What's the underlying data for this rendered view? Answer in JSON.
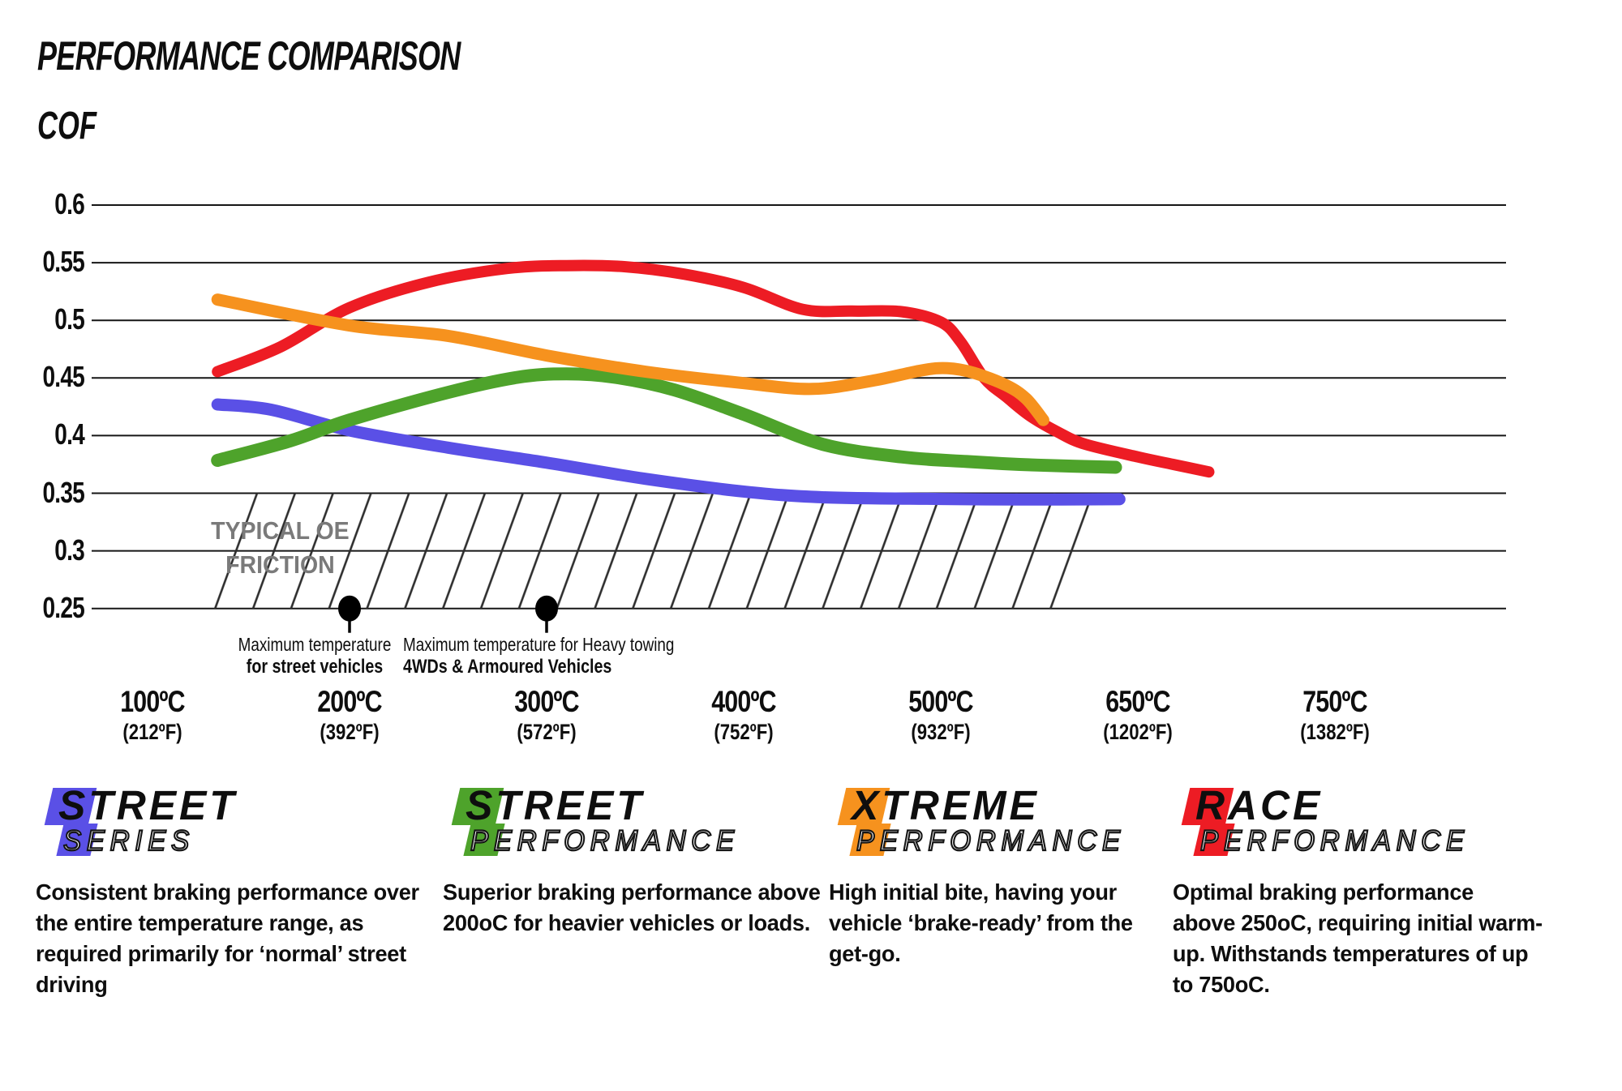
{
  "title": "PERFORMANCE COMPARISON",
  "y_axis_label": "COF",
  "chart_data": {
    "type": "line",
    "title": "PERFORMANCE COMPARISON",
    "ylabel": "COF",
    "grid": "horizontal-only",
    "ylim": [
      0.25,
      0.6
    ],
    "y_ticks": [
      0.6,
      0.55,
      0.5,
      0.45,
      0.4,
      0.35,
      0.3,
      0.25
    ],
    "x_ticks": [
      {
        "temp": 100,
        "label_c": "100ºC",
        "label_f": "(212ºF)"
      },
      {
        "temp": 200,
        "label_c": "200ºC",
        "label_f": "(392ºF)"
      },
      {
        "temp": 300,
        "label_c": "300ºC",
        "label_f": "(572ºF)"
      },
      {
        "temp": 400,
        "label_c": "400ºC",
        "label_f": "(752ºF)"
      },
      {
        "temp": 500,
        "label_c": "500ºC",
        "label_f": "(932ºF)"
      },
      {
        "temp": 650,
        "label_c": "650ºC",
        "label_f": "(1202ºF)"
      },
      {
        "temp": 750,
        "label_c": "750ºC",
        "label_f": "(1382ºF)"
      }
    ],
    "series": [
      {
        "name": "Street Series",
        "color": "#5a50e6",
        "stroke_width": 15,
        "points": [
          [
            133,
            0.427
          ],
          [
            160,
            0.4225
          ],
          [
            200,
            0.4045
          ],
          [
            250,
            0.3895
          ],
          [
            300,
            0.3765
          ],
          [
            350,
            0.3625
          ],
          [
            400,
            0.3515
          ],
          [
            440,
            0.3465
          ],
          [
            500,
            0.345
          ],
          [
            560,
            0.3445
          ],
          [
            636,
            0.3448
          ]
        ]
      },
      {
        "name": "Street Performance",
        "color": "#4ea32b",
        "stroke_width": 16,
        "points": [
          [
            133,
            0.3785
          ],
          [
            170,
            0.3955
          ],
          [
            200,
            0.4135
          ],
          [
            250,
            0.4375
          ],
          [
            285,
            0.4505
          ],
          [
            310,
            0.4535
          ],
          [
            335,
            0.4505
          ],
          [
            365,
            0.4395
          ],
          [
            400,
            0.4185
          ],
          [
            440,
            0.3925
          ],
          [
            480,
            0.3815
          ],
          [
            520,
            0.3775
          ],
          [
            560,
            0.375
          ],
          [
            600,
            0.3735
          ],
          [
            633,
            0.3725
          ]
        ]
      },
      {
        "name": "Xtreme Performance",
        "color": "#f6921e",
        "stroke_width": 15,
        "points": [
          [
            133,
            0.518
          ],
          [
            200,
            0.4955
          ],
          [
            250,
            0.4865
          ],
          [
            300,
            0.4695
          ],
          [
            350,
            0.4555
          ],
          [
            400,
            0.4455
          ],
          [
            435,
            0.4405
          ],
          [
            465,
            0.4475
          ],
          [
            490,
            0.4565
          ],
          [
            505,
            0.4585
          ],
          [
            525,
            0.4545
          ],
          [
            550,
            0.4435
          ],
          [
            565,
            0.432
          ],
          [
            578,
            0.4135
          ]
        ]
      },
      {
        "name": "Race Performance",
        "color": "#ed1c24",
        "stroke_width": 14,
        "points": [
          [
            133,
            0.4555
          ],
          [
            165,
            0.477
          ],
          [
            200,
            0.511
          ],
          [
            240,
            0.533
          ],
          [
            280,
            0.545
          ],
          [
            310,
            0.5475
          ],
          [
            340,
            0.5465
          ],
          [
            370,
            0.54
          ],
          [
            400,
            0.5285
          ],
          [
            430,
            0.5095
          ],
          [
            455,
            0.508
          ],
          [
            480,
            0.5075
          ],
          [
            500,
            0.4985
          ],
          [
            515,
            0.4815
          ],
          [
            533,
            0.45
          ],
          [
            550,
            0.4335
          ],
          [
            568,
            0.417
          ],
          [
            590,
            0.4025
          ],
          [
            610,
            0.3925
          ],
          [
            650,
            0.3815
          ],
          [
            668,
            0.375
          ],
          [
            686,
            0.3685
          ]
        ]
      }
    ],
    "oe_band": {
      "label_line1": "TYPICAL OE",
      "label_line2": "FRICTION",
      "cof_top": 0.35,
      "cof_bottom": 0.25,
      "label_color": "#7a7a7a"
    },
    "markers": [
      {
        "temp": 200,
        "cof": 0.25,
        "line1": "Maximum temperature",
        "line2": "for street vehicles"
      },
      {
        "temp": 300,
        "cof": 0.25,
        "line1": "Maximum temperature for Heavy towing",
        "line2": "4WDs & Armoured Vehicles"
      }
    ]
  },
  "legend": {
    "items": [
      {
        "word1": "STREET",
        "word2": "SERIES",
        "color": "#5a50e6",
        "desc_lines": [
          "Consistent braking performance over",
          "the entire temperature range, as",
          "required primarily for ‘normal’ street",
          "driving"
        ]
      },
      {
        "word1": "STREET",
        "word2": "PERFORMANCE",
        "color": "#4ea32b",
        "desc_lines": [
          "Superior braking performance above",
          "200oC for heavier vehicles or loads."
        ]
      },
      {
        "word1": "XTREME",
        "word2": "PERFORMANCE",
        "color": "#f6921e",
        "desc_lines": [
          "High initial bite, having your",
          "vehicle ‘brake-ready’ from the",
          "get-go."
        ]
      },
      {
        "word1": "RACE",
        "word2": "PERFORMANCE",
        "color": "#ed1c24",
        "desc_lines": [
          "Optimal braking performance",
          "above 250oC, requiring initial warm-",
          "up. Withstands temperatures of up",
          "to 750oC."
        ]
      }
    ]
  }
}
